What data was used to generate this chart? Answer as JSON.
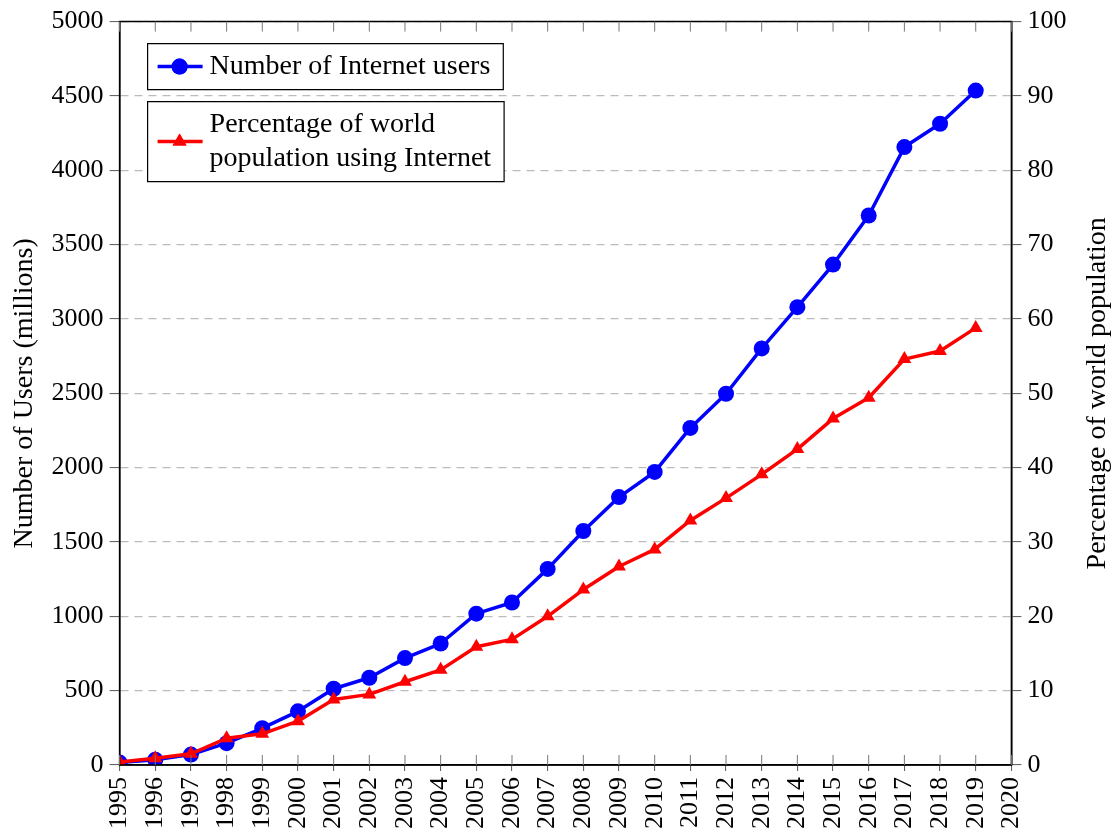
{
  "chart_data": {
    "type": "line",
    "ylabel": "Number of Users (millions)",
    "y2label": "Percentage of world population",
    "xlim": [
      1995,
      2020
    ],
    "xticks": [
      1995,
      1996,
      1997,
      1998,
      1999,
      2000,
      2001,
      2002,
      2003,
      2004,
      2005,
      2006,
      2007,
      2008,
      2009,
      2010,
      2011,
      2012,
      2013,
      2014,
      2015,
      2016,
      2017,
      2018,
      2019,
      2020
    ],
    "ylim": [
      0,
      5000
    ],
    "yticks": [
      0,
      500,
      1000,
      1500,
      2000,
      2500,
      3000,
      3500,
      4000,
      4500,
      5000
    ],
    "y2lim": [
      0,
      100
    ],
    "y2ticks": [
      0,
      10,
      20,
      30,
      40,
      50,
      60,
      70,
      80,
      90,
      100
    ],
    "grid": "y",
    "legend": "top left",
    "line_style": "solid",
    "x": [
      1995,
      1996,
      1997,
      1998,
      1999,
      2000,
      2001,
      2002,
      2003,
      2004,
      2005,
      2006,
      2007,
      2008,
      2009,
      2010,
      2011,
      2012,
      2013,
      2014,
      2015,
      2016,
      2017,
      2018,
      2019
    ],
    "series": [
      {
        "name": "Number of Internet users",
        "color": "#0000ff",
        "marker": "circle",
        "values": [
          16,
          36,
          70,
          147,
          248,
          361,
          513,
          587,
          719,
          817,
          1018,
          1093,
          1319,
          1574,
          1802,
          1971,
          2267,
          2497,
          2802,
          3079,
          3366,
          3696,
          4156,
          4313,
          4536
        ]
      },
      {
        "name": "Percentage of world population using Internet",
        "color": "#ff0000",
        "marker": "triangle",
        "axis": "y2",
        "values": [
          0.4,
          0.9,
          1.5,
          3.6,
          4.2,
          5.9,
          8.8,
          9.5,
          11.2,
          12.8,
          15.9,
          16.9,
          20.0,
          23.6,
          26.7,
          29.0,
          32.9,
          35.9,
          39.1,
          42.5,
          46.6,
          49.4,
          54.6,
          55.7,
          58.8
        ]
      }
    ]
  }
}
